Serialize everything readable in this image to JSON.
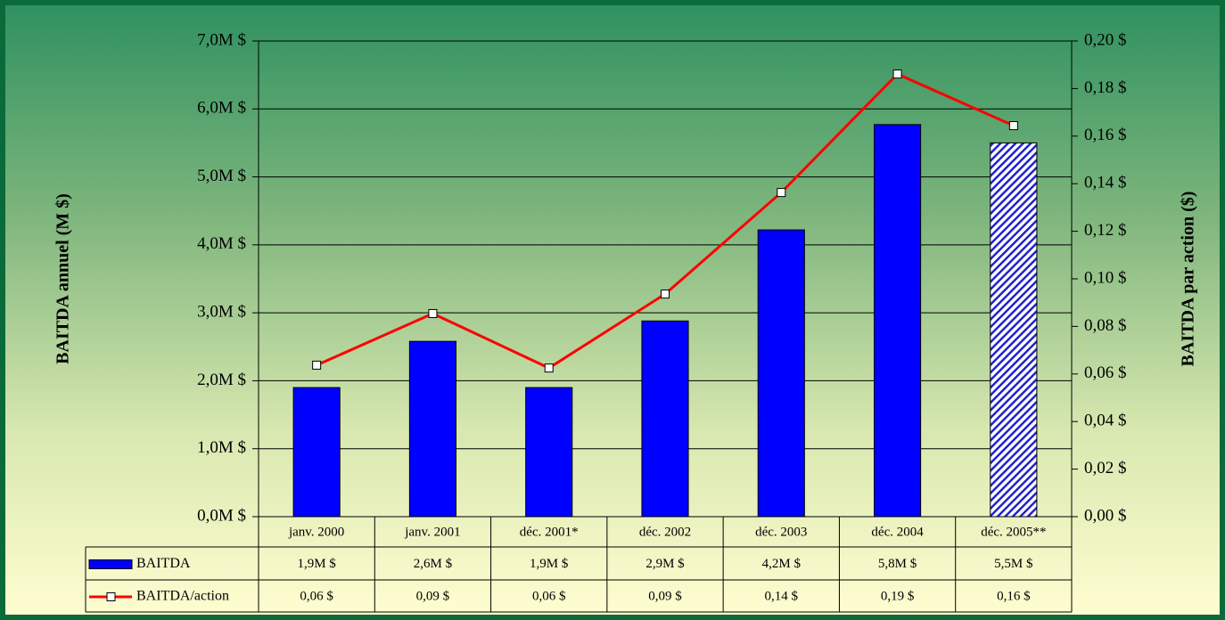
{
  "chart_data": {
    "type": "bar-line",
    "categories": [
      "janv. 2000",
      "janv. 2001",
      "déc. 2001*",
      "déc. 2002",
      "déc. 2003",
      "déc. 2004",
      "déc. 2005**"
    ],
    "series": [
      {
        "name": "BAITDA",
        "type": "bar",
        "color": "#0000ff",
        "values": [
          1.9,
          2.58,
          1.9,
          2.88,
          4.22,
          5.77,
          5.5
        ],
        "value_labels": [
          "1,9M $",
          "2,6M $",
          "1,9M $",
          "2,9M $",
          "4,2M $",
          "5,8M $",
          "5,5M $"
        ],
        "styles": [
          "solid",
          "solid",
          "solid",
          "solid",
          "solid",
          "solid",
          "hatched"
        ]
      },
      {
        "name": "BAITDA/action",
        "type": "line",
        "axis": "y2",
        "color": "#ff0000",
        "values": [
          0.0637,
          0.0854,
          0.0625,
          0.0936,
          0.1363,
          0.1861,
          0.1644
        ],
        "value_labels": [
          "0,06 $",
          "0,09 $",
          "0,06 $",
          "0,09 $",
          "0,14 $",
          "0,19 $",
          "0,16 $"
        ]
      }
    ],
    "ylabel": "BAITDA annuel (M $)",
    "y2label": "BAITDA par action ($)",
    "ylim": [
      0,
      7
    ],
    "yticks": [
      {
        "value": 0,
        "label": "0,0M $"
      },
      {
        "value": 1,
        "label": "1,0M $"
      },
      {
        "value": 2,
        "label": "2,0M $"
      },
      {
        "value": 3,
        "label": "3,0M $"
      },
      {
        "value": 4,
        "label": "4,0M $"
      },
      {
        "value": 5,
        "label": "5,0M $"
      },
      {
        "value": 6,
        "label": "6,0M $"
      },
      {
        "value": 7,
        "label": "7,0M $"
      }
    ],
    "y2lim": [
      0,
      0.2
    ],
    "y2ticks": [
      {
        "value": 0,
        "label": "0,00 $"
      },
      {
        "value": 0.02,
        "label": "0,02 $"
      },
      {
        "value": 0.04,
        "label": "0,04 $"
      },
      {
        "value": 0.06,
        "label": "0,06 $"
      },
      {
        "value": 0.08,
        "label": "0,08 $"
      },
      {
        "value": 0.1,
        "label": "0,10 $"
      },
      {
        "value": 0.12,
        "label": "0,12 $"
      },
      {
        "value": 0.14,
        "label": "0,14 $"
      },
      {
        "value": 0.16,
        "label": "0,16 $"
      },
      {
        "value": 0.18,
        "label": "0,18 $"
      },
      {
        "value": 0.2,
        "label": "0,20 $"
      }
    ],
    "grid": true
  }
}
